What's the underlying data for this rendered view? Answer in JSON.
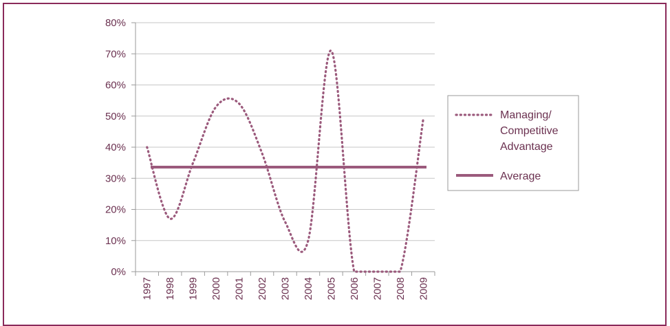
{
  "chart_data": {
    "type": "line",
    "categories": [
      "1997",
      "1998",
      "1999",
      "2000",
      "2001",
      "2002",
      "2003",
      "2004",
      "2005",
      "2006",
      "2007",
      "2008",
      "2009"
    ],
    "series": [
      {
        "name": "Managing/ Competitive Advantage",
        "name_lines": [
          "Managing/",
          "Competitive",
          "Advantage"
        ],
        "style": "dotted",
        "color": "#9b5a7c",
        "values": [
          40,
          17,
          35,
          53,
          54,
          38,
          16,
          10,
          71,
          0,
          0,
          0,
          49
        ]
      },
      {
        "name": "Average",
        "name_lines": [
          "Average"
        ],
        "style": "solid",
        "color": "#9b5a7c",
        "values": [
          33.6,
          33.6,
          33.6,
          33.6,
          33.6,
          33.6,
          33.6,
          33.6,
          33.6,
          33.6,
          33.6,
          33.6,
          33.6
        ]
      }
    ],
    "yticks": [
      "0%",
      "10%",
      "20%",
      "30%",
      "40%",
      "50%",
      "60%",
      "70%",
      "80%"
    ],
    "ylim": [
      0,
      80
    ],
    "grid": true,
    "legend_position": "right",
    "title": "",
    "xlabel": "",
    "ylabel": ""
  },
  "colors": {
    "frame": "#8a2a5a",
    "grid": "#c6c6c6",
    "axis_text": "#6b3150",
    "line": "#9b5a7c"
  }
}
